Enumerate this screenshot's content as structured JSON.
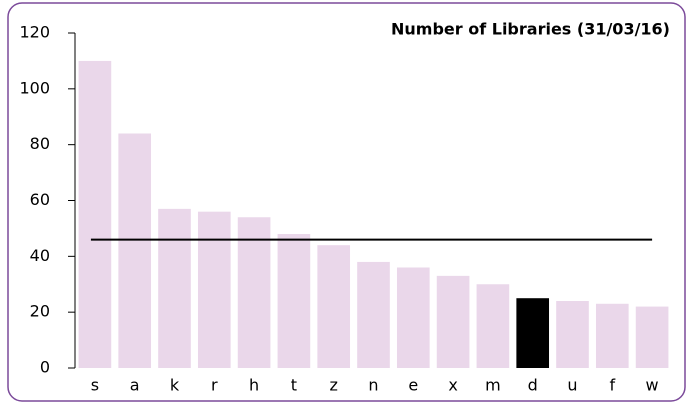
{
  "chart_data": {
    "type": "bar",
    "title": "Number of Libraries (31/03/16)",
    "categories": [
      "s",
      "a",
      "k",
      "r",
      "h",
      "t",
      "z",
      "n",
      "e",
      "x",
      "m",
      "d",
      "u",
      "f",
      "w"
    ],
    "values": [
      110,
      84,
      57,
      56,
      54,
      48,
      44,
      38,
      36,
      33,
      30,
      25,
      24,
      23,
      22
    ],
    "colors": [
      "#ead7ea",
      "#ead7ea",
      "#ead7ea",
      "#ead7ea",
      "#ead7ea",
      "#ead7ea",
      "#ead7ea",
      "#ead7ea",
      "#ead7ea",
      "#ead7ea",
      "#ead7ea",
      "#000000",
      "#ead7ea",
      "#ead7ea",
      "#ead7ea"
    ],
    "reference_line": 46,
    "reference_color": "#000000",
    "ylim": [
      0,
      120
    ],
    "yticks": [
      0,
      20,
      40,
      60,
      80,
      100,
      120
    ],
    "grid": false
  }
}
